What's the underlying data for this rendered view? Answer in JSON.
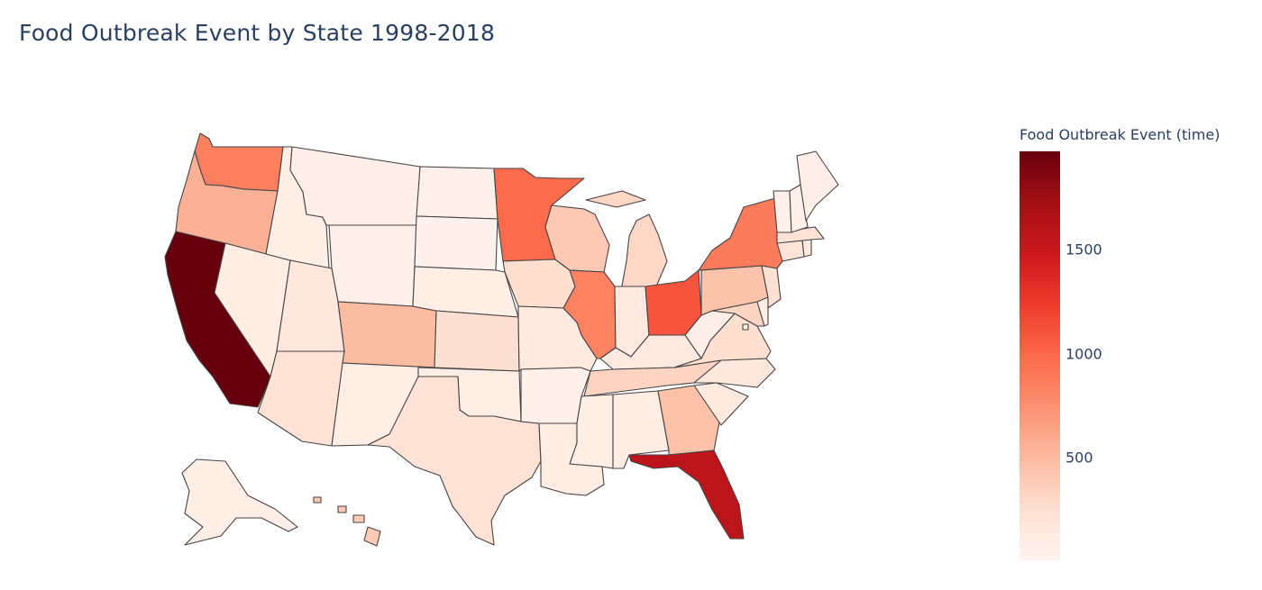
{
  "chart_data": {
    "type": "choropleth",
    "title": "Food Outbreak Event by State 1998-2018",
    "scope": "usa",
    "colorscale": "Reds",
    "colorscale_colors": [
      "#fff5f0",
      "#fee0d2",
      "#fcbba1",
      "#fc9272",
      "#fb6a4a",
      "#ef3b2c",
      "#cb181d",
      "#a50f15",
      "#67000d"
    ],
    "colorbar": {
      "title": "Food Outbreak Event (time)",
      "range": [
        5,
        1970
      ],
      "ticks": [
        {
          "value": 500,
          "label": "500"
        },
        {
          "value": 1000,
          "label": "1000"
        },
        {
          "value": 1500,
          "label": "1500"
        }
      ]
    },
    "states": [
      {
        "code": "WA",
        "value": 860
      },
      {
        "code": "OR",
        "value": 560
      },
      {
        "code": "CA",
        "value": 1970
      },
      {
        "code": "NV",
        "value": 100
      },
      {
        "code": "ID",
        "value": 90
      },
      {
        "code": "MT",
        "value": 70
      },
      {
        "code": "WY",
        "value": 60
      },
      {
        "code": "UT",
        "value": 170
      },
      {
        "code": "AZ",
        "value": 230
      },
      {
        "code": "CO",
        "value": 490
      },
      {
        "code": "NM",
        "value": 90
      },
      {
        "code": "ND",
        "value": 60
      },
      {
        "code": "SD",
        "value": 50
      },
      {
        "code": "NE",
        "value": 80
      },
      {
        "code": "KS",
        "value": 250
      },
      {
        "code": "OK",
        "value": 90
      },
      {
        "code": "TX",
        "value": 230
      },
      {
        "code": "MN",
        "value": 980
      },
      {
        "code": "IA",
        "value": 260
      },
      {
        "code": "MO",
        "value": 130
      },
      {
        "code": "AR",
        "value": 60
      },
      {
        "code": "LA",
        "value": 100
      },
      {
        "code": "WI",
        "value": 400
      },
      {
        "code": "IL",
        "value": 840
      },
      {
        "code": "MI",
        "value": 310
      },
      {
        "code": "IN",
        "value": 140
      },
      {
        "code": "OH",
        "value": 1100
      },
      {
        "code": "KY",
        "value": 140
      },
      {
        "code": "TN",
        "value": 330
      },
      {
        "code": "MS",
        "value": 80
      },
      {
        "code": "AL",
        "value": 110
      },
      {
        "code": "GA",
        "value": 450
      },
      {
        "code": "FL",
        "value": 1580
      },
      {
        "code": "SC",
        "value": 150
      },
      {
        "code": "NC",
        "value": 170
      },
      {
        "code": "VA",
        "value": 260
      },
      {
        "code": "WV",
        "value": 70
      },
      {
        "code": "MD",
        "value": 330
      },
      {
        "code": "DE",
        "value": 90
      },
      {
        "code": "PA",
        "value": 440
      },
      {
        "code": "NJ",
        "value": 240
      },
      {
        "code": "NY",
        "value": 880
      },
      {
        "code": "CT",
        "value": 200
      },
      {
        "code": "RI",
        "value": 120
      },
      {
        "code": "MA",
        "value": 230
      },
      {
        "code": "VT",
        "value": 60
      },
      {
        "code": "NH",
        "value": 60
      },
      {
        "code": "ME",
        "value": 70
      },
      {
        "code": "AK",
        "value": 90
      },
      {
        "code": "HI",
        "value": 390
      },
      {
        "code": "DC",
        "value": 80
      }
    ]
  }
}
